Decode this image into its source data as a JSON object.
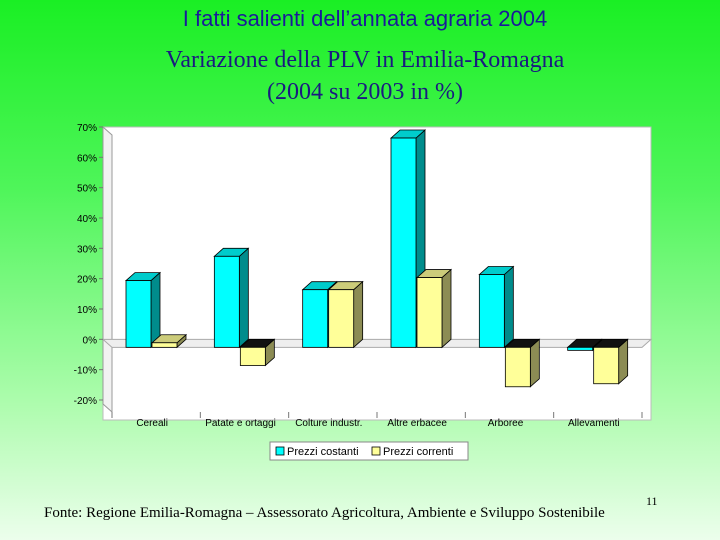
{
  "header": {
    "title": "I fatti salienti dell’annata agraria 2004",
    "subtitle_line1": "Variazione della PLV in Emilia-Romagna",
    "subtitle_line2": "(2004 su 2003 in %)"
  },
  "chart_data": {
    "type": "bar",
    "categories": [
      "Cereali",
      "Patate e ortaggi",
      "Colture industr.",
      "Altre erbacee",
      "Arboree",
      "Allevamenti"
    ],
    "series": [
      {
        "name": "Prezzi costanti",
        "color": "#00ffff",
        "values": [
          22,
          30,
          19,
          69,
          24,
          -1
        ]
      },
      {
        "name": "Prezzi correnti",
        "color": "#ffff99",
        "values": [
          1.5,
          -6,
          19,
          23,
          -13,
          -12
        ]
      }
    ],
    "y_ticks": [
      "70%",
      "60%",
      "50%",
      "40%",
      "30%",
      "20%",
      "10%",
      "0%",
      "-10%",
      "-20%"
    ],
    "ylim": [
      -20,
      70
    ],
    "legend_position": "bottom",
    "grid": false
  },
  "footer": {
    "source": "Fonte: Regione Emilia-Romagna – Assessorato Agricoltura, Ambiente e Sviluppo Sostenibile",
    "page_number": "11"
  }
}
